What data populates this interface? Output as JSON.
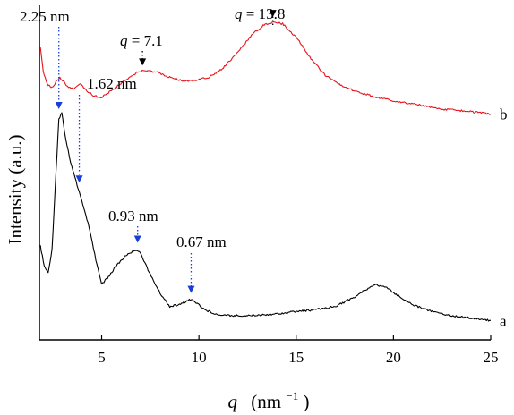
{
  "chart_data": {
    "type": "line",
    "title": "",
    "xlabel": "q",
    "xlabel_unit": "(nm",
    "xlabel_exponent": "−1",
    "xlabel_close": ")",
    "ylabel": "Intensity (a.u.)",
    "xlim": [
      1.8,
      25
    ],
    "ylim": [
      0,
      1
    ],
    "x_ticks": [
      5,
      10,
      15,
      20,
      25
    ],
    "x_tick_labels": [
      "5",
      "10",
      "15",
      "20",
      "25"
    ],
    "grid": false,
    "legend": "none",
    "series": [
      {
        "name": "a",
        "color": "#000000",
        "points": [
          [
            1.85,
            0.28
          ],
          [
            2.05,
            0.22
          ],
          [
            2.25,
            0.2
          ],
          [
            2.45,
            0.27
          ],
          [
            2.65,
            0.5
          ],
          [
            2.8,
            0.66
          ],
          [
            2.95,
            0.68
          ],
          [
            3.1,
            0.62
          ],
          [
            3.4,
            0.53
          ],
          [
            3.8,
            0.45
          ],
          [
            4.3,
            0.35
          ],
          [
            4.7,
            0.24
          ],
          [
            5.0,
            0.165
          ],
          [
            5.3,
            0.185
          ],
          [
            5.8,
            0.225
          ],
          [
            6.3,
            0.255
          ],
          [
            6.7,
            0.268
          ],
          [
            7.0,
            0.26
          ],
          [
            7.5,
            0.195
          ],
          [
            8.0,
            0.14
          ],
          [
            8.5,
            0.1
          ],
          [
            9.0,
            0.105
          ],
          [
            9.5,
            0.12
          ],
          [
            9.8,
            0.115
          ],
          [
            10.3,
            0.09
          ],
          [
            11,
            0.075
          ],
          [
            12,
            0.072
          ],
          [
            13,
            0.074
          ],
          [
            14,
            0.078
          ],
          [
            15,
            0.085
          ],
          [
            16,
            0.09
          ],
          [
            17,
            0.1
          ],
          [
            18,
            0.128
          ],
          [
            18.7,
            0.155
          ],
          [
            19.1,
            0.165
          ],
          [
            19.6,
            0.158
          ],
          [
            20.3,
            0.13
          ],
          [
            21,
            0.105
          ],
          [
            22,
            0.085
          ],
          [
            23,
            0.072
          ],
          [
            24,
            0.065
          ],
          [
            25,
            0.058
          ]
        ]
      },
      {
        "name": "b",
        "color": "#e8141c",
        "points": [
          [
            1.85,
            0.875
          ],
          [
            2.0,
            0.8
          ],
          [
            2.2,
            0.765
          ],
          [
            2.45,
            0.755
          ],
          [
            2.7,
            0.775
          ],
          [
            2.85,
            0.785
          ],
          [
            3.0,
            0.775
          ],
          [
            3.3,
            0.755
          ],
          [
            3.6,
            0.75
          ],
          [
            3.9,
            0.765
          ],
          [
            4.2,
            0.745
          ],
          [
            4.6,
            0.73
          ],
          [
            5.0,
            0.725
          ],
          [
            5.5,
            0.745
          ],
          [
            6.2,
            0.775
          ],
          [
            6.8,
            0.8
          ],
          [
            7.2,
            0.805
          ],
          [
            7.8,
            0.8
          ],
          [
            8.5,
            0.785
          ],
          [
            9.2,
            0.775
          ],
          [
            9.8,
            0.775
          ],
          [
            10.5,
            0.785
          ],
          [
            11.2,
            0.81
          ],
          [
            12.0,
            0.86
          ],
          [
            12.7,
            0.91
          ],
          [
            13.3,
            0.94
          ],
          [
            13.8,
            0.95
          ],
          [
            14.3,
            0.945
          ],
          [
            15.0,
            0.905
          ],
          [
            15.7,
            0.845
          ],
          [
            16.5,
            0.79
          ],
          [
            17.5,
            0.755
          ],
          [
            18.5,
            0.735
          ],
          [
            19.5,
            0.72
          ],
          [
            20.5,
            0.71
          ],
          [
            21.5,
            0.7
          ],
          [
            22.5,
            0.69
          ],
          [
            23.5,
            0.685
          ],
          [
            24.3,
            0.68
          ],
          [
            25,
            0.675
          ]
        ]
      }
    ],
    "annotations": [
      {
        "id": "ann-2-25nm",
        "text": "2.25 nm",
        "x": 2.8,
        "arrow_color": "#1a3fd8",
        "arrow_tip_y": 0.69
      },
      {
        "id": "ann-1-62nm",
        "text": "1.62 nm",
        "x": 3.85,
        "arrow_color": "#1a3fd8",
        "arrow_tip_y": 0.47
      },
      {
        "id": "ann-0-93nm",
        "text": "0.93 nm",
        "x": 6.85,
        "arrow_color": "#1a3fd8",
        "arrow_tip_y": 0.29
      },
      {
        "id": "ann-0-67nm",
        "text": "0.67 nm",
        "x": 9.6,
        "arrow_color": "#1a3fd8",
        "arrow_tip_y": 0.14
      },
      {
        "id": "ann-q-7-1",
        "q_symbol": "q",
        "text": " = 7.1",
        "x": 7.1,
        "arrow_color": "#000000",
        "arrow_tip_y": 0.82
      },
      {
        "id": "ann-q-13-8",
        "q_symbol": "q",
        "text": " = 13.8",
        "x": 13.8,
        "arrow_color": "#000000",
        "arrow_tip_y": 0.965
      }
    ]
  }
}
